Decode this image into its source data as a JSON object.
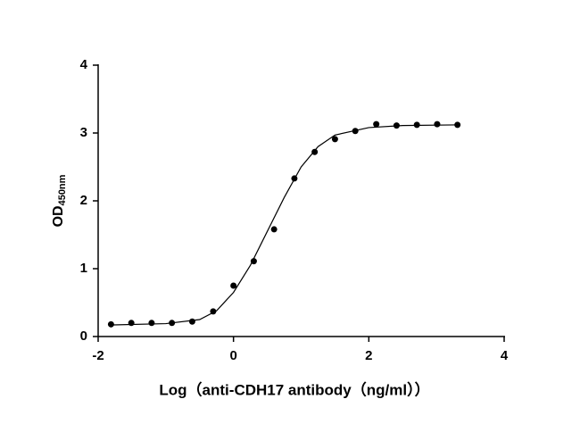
{
  "chart_data": {
    "type": "scatter",
    "xlabel": "Log（anti-CDH17 antibody（ng/ml））",
    "ylabel": "OD",
    "ylabel_subscript": "450nm",
    "x": [
      -1.81,
      -1.51,
      -1.21,
      -0.91,
      -0.61,
      -0.3,
      0.0,
      0.3,
      0.6,
      0.9,
      1.2,
      1.5,
      1.8,
      2.11,
      2.41,
      2.71,
      3.01,
      3.31
    ],
    "values": [
      0.18,
      0.2,
      0.2,
      0.2,
      0.22,
      0.37,
      0.75,
      1.11,
      1.58,
      2.33,
      2.72,
      2.91,
      3.03,
      3.13,
      3.11,
      3.12,
      3.13,
      3.12
    ],
    "color": "#000000",
    "fit_curve": {
      "x": [
        -1.8,
        -1.0,
        -0.5,
        -0.25,
        0.0,
        0.25,
        0.5,
        0.75,
        1.0,
        1.25,
        1.5,
        2.0,
        2.5,
        3.3
      ],
      "values": [
        0.17,
        0.19,
        0.25,
        0.38,
        0.65,
        1.05,
        1.55,
        2.05,
        2.5,
        2.8,
        2.97,
        3.08,
        3.11,
        3.12
      ]
    },
    "xlim": [
      -2,
      4
    ],
    "xticks": [
      -2,
      0,
      2,
      4
    ],
    "ylim": [
      0,
      4
    ],
    "yticks": [
      0,
      1,
      2,
      3,
      4
    ],
    "grid": false
  }
}
